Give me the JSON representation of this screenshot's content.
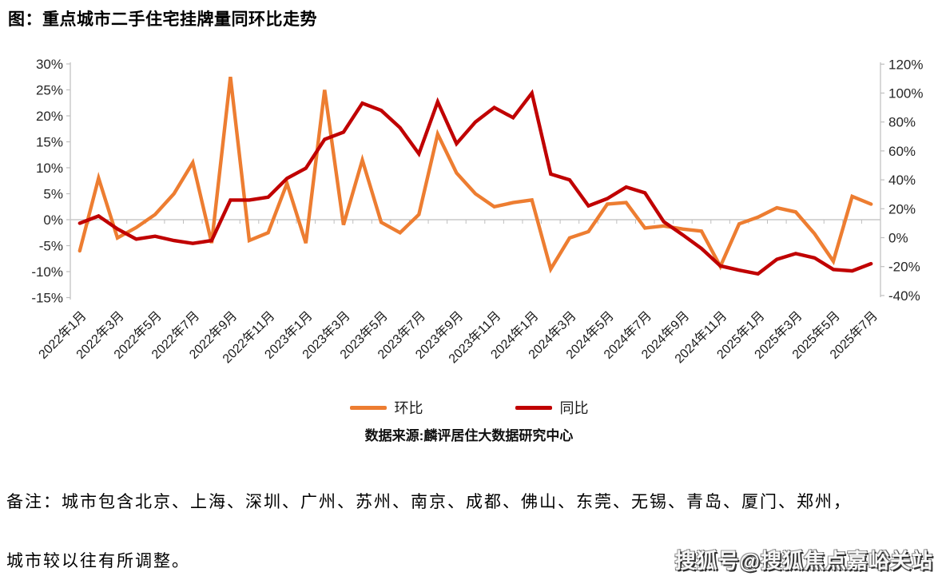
{
  "title": "图：重点城市二手住宅挂牌量同环比走势",
  "chart_data": {
    "type": "line",
    "title": "图：重点城市二手住宅挂牌量同环比走势",
    "categories": [
      "2022年1月",
      "2022年2月",
      "2022年3月",
      "2022年4月",
      "2022年5月",
      "2022年6月",
      "2022年7月",
      "2022年8月",
      "2022年9月",
      "2022年10月",
      "2022年11月",
      "2022年12月",
      "2023年1月",
      "2023年2月",
      "2023年3月",
      "2023年4月",
      "2023年5月",
      "2023年6月",
      "2023年7月",
      "2023年8月",
      "2023年9月",
      "2023年10月",
      "2023年11月",
      "2023年12月",
      "2024年1月",
      "2024年2月",
      "2024年3月",
      "2024年4月",
      "2024年5月",
      "2024年6月",
      "2024年7月",
      "2024年8月",
      "2024年9月",
      "2024年10月",
      "2024年11月",
      "2024年12月",
      "2025年1月",
      "2025年2月",
      "2025年3月",
      "2025年4月",
      "2025年5月",
      "2025年6月",
      "2025年7月"
    ],
    "x_tick_labels": [
      "2022年1月",
      "2022年3月",
      "2022年5月",
      "2022年7月",
      "2022年9月",
      "2022年11月",
      "2023年1月",
      "2023年3月",
      "2023年5月",
      "2023年7月",
      "2023年9月",
      "2023年11月",
      "2024年1月",
      "2024年3月",
      "2024年5月",
      "2024年7月",
      "2024年9月",
      "2024年11月",
      "2025年1月",
      "2025年3月",
      "2025年5月",
      "2025年7月"
    ],
    "series": [
      {
        "name": "环比",
        "axis": "left",
        "color": "#ED7D31",
        "values": [
          -6,
          8,
          -3.5,
          -1.5,
          1,
          5,
          11,
          -4.5,
          27.5,
          -4,
          -2.5,
          7,
          -4.5,
          25,
          -1,
          11.5,
          -0.5,
          -2.5,
          1,
          16.5,
          9,
          5,
          2.5,
          3.3,
          3.8,
          -9.5,
          -3.5,
          -2.3,
          3,
          3.3,
          -1.6,
          -1.2,
          -1.8,
          -2.2,
          -9,
          -0.8,
          0.5,
          2.3,
          1.5,
          -2.7,
          -8,
          4.5,
          3
        ]
      },
      {
        "name": "同比",
        "axis": "right",
        "color": "#C00000",
        "values": [
          10,
          15,
          6,
          -1,
          1,
          -2,
          -4,
          -2,
          26,
          26,
          28,
          41,
          48,
          68,
          73,
          93,
          88,
          76,
          58,
          94,
          65,
          80,
          90,
          83,
          100,
          44,
          40,
          22,
          27,
          35,
          31,
          11,
          2,
          -7.5,
          -19.5,
          -22.5,
          -25,
          -15,
          -11,
          -14,
          -22,
          -23,
          -18
        ]
      }
    ],
    "left_axis": {
      "ticks": [
        "30%",
        "25%",
        "20%",
        "15%",
        "10%",
        "5%",
        "0%",
        "-5%",
        "-10%",
        "-15%"
      ],
      "max": 30,
      "min": -15,
      "step": 5
    },
    "right_axis": {
      "ticks": [
        "120%",
        "100%",
        "80%",
        "60%",
        "40%",
        "20%",
        "0%",
        "-20%",
        "-40%"
      ],
      "max": 120,
      "min": -40,
      "step": 20
    },
    "grid": "zero-line-only",
    "legend_position": "bottom",
    "source": "数据来源:麟评居住大数据研究中心"
  },
  "legend": {
    "mom_label": "环比",
    "yoy_label": "同比"
  },
  "source_label": "数据来源:麟评居住大数据研究中心",
  "notes": {
    "line1": "备注：城市包含北京、上海、深圳、广州、苏州、南京、成都、佛山、东莞、无锡、青岛、厦门、郑州，",
    "line2": "城市较以往有所调整。"
  },
  "watermark": "搜狐号@搜狐焦点嘉峪关站",
  "colors": {
    "mom": "#ED7D31",
    "yoy": "#C00000",
    "grid": "#C8C8C8",
    "axis": "#BFBFBF",
    "axis_text": "#262626"
  }
}
